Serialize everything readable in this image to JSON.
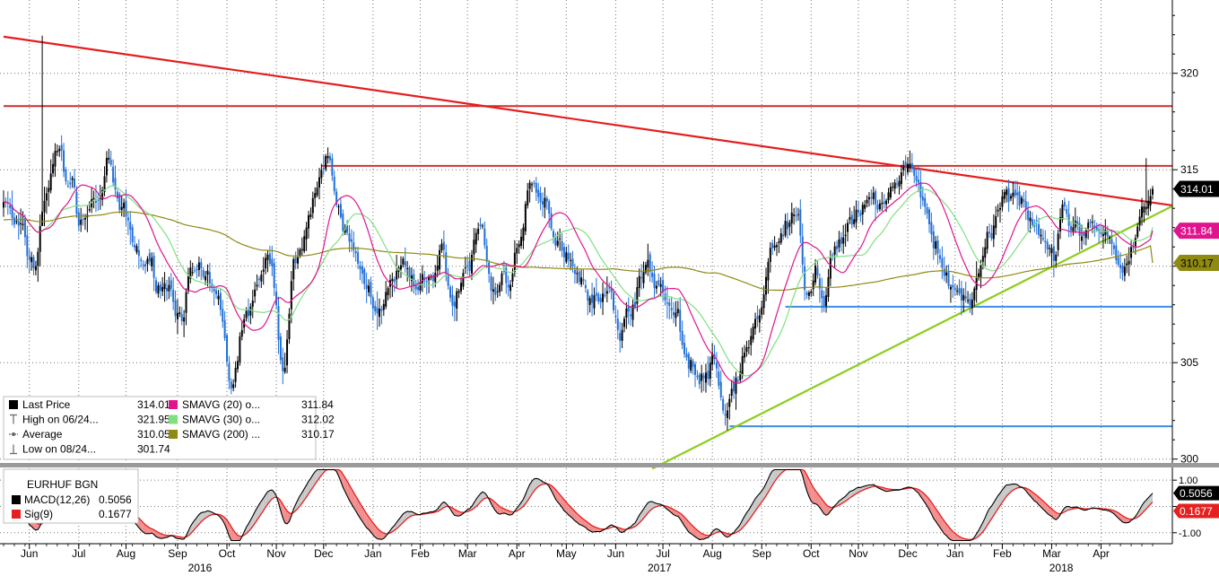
{
  "chart_data": {
    "type": "candlestick",
    "main_panel": {
      "y_ticks": [
        "320",
        "315",
        "305",
        "300"
      ],
      "ylim": [
        299.8,
        323.8
      ],
      "price_tags": [
        {
          "label": "314.01",
          "value": 314.01,
          "color": "#000000",
          "text_color": "#ffffff"
        },
        {
          "label": "311.84",
          "value": 311.84,
          "color": "#e0148c",
          "text_color": "#ffffff"
        },
        {
          "label": "310.17",
          "value": 310.17,
          "color": "#8f8a12",
          "text_color": "#000000"
        }
      ],
      "legend": [
        {
          "marker": "square",
          "color": "#000000",
          "label": "Last Price",
          "value": "314.01"
        },
        {
          "marker": "high",
          "color": "#666666",
          "label": "High on 06/24...",
          "value": "321.95"
        },
        {
          "marker": "avg",
          "color": "#666666",
          "label": "Average",
          "value": "310.05"
        },
        {
          "marker": "low",
          "color": "#666666",
          "label": "Low on 08/24...",
          "value": "301.74"
        },
        {
          "marker": "square",
          "color": "#e0148c",
          "label": "SMAVG (20) o...",
          "value": "311.84"
        },
        {
          "marker": "square",
          "color": "#7fe07f",
          "label": "SMAVG (30) o...",
          "value": "312.02"
        },
        {
          "marker": "square",
          "color": "#8f8a12",
          "label": "SMAVG (200) ...",
          "value": "310.17"
        }
      ],
      "series": {
        "ohlc_anchors": [
          [
            0,
            313.5
          ],
          [
            6,
            312
          ],
          [
            14,
            310
          ],
          [
            20,
            314
          ],
          [
            26,
            316
          ],
          [
            30,
            314.5
          ],
          [
            36,
            312.5
          ],
          [
            44,
            313.5
          ],
          [
            48,
            315
          ],
          [
            56,
            312.5
          ],
          [
            62,
            310.8
          ],
          [
            68,
            309.8
          ],
          [
            76,
            309
          ],
          [
            82,
            307.8
          ],
          [
            88,
            309.5
          ],
          [
            94,
            309
          ],
          [
            100,
            308
          ],
          [
            106,
            304
          ],
          [
            112,
            307
          ],
          [
            118,
            309
          ],
          [
            124,
            310
          ],
          [
            130,
            305.2
          ],
          [
            136,
            310
          ],
          [
            142,
            313
          ],
          [
            148,
            314.8
          ],
          [
            150,
            315.5
          ],
          [
            156,
            312.5
          ],
          [
            162,
            311
          ],
          [
            168,
            309.2
          ],
          [
            174,
            308.2
          ],
          [
            180,
            308.8
          ],
          [
            186,
            310
          ],
          [
            192,
            308.5
          ],
          [
            198,
            309.5
          ],
          [
            204,
            310.5
          ],
          [
            210,
            308.2
          ],
          [
            216,
            310
          ],
          [
            222,
            312
          ],
          [
            228,
            308.8
          ],
          [
            234,
            309.4
          ],
          [
            240,
            311.2
          ],
          [
            246,
            313.8
          ],
          [
            252,
            313
          ],
          [
            258,
            311.6
          ],
          [
            264,
            310.5
          ],
          [
            270,
            309.4
          ],
          [
            276,
            308.2
          ],
          [
            282,
            308.4
          ],
          [
            288,
            306.8
          ],
          [
            294,
            308.6
          ],
          [
            300,
            310
          ],
          [
            306,
            309
          ],
          [
            312,
            307.6
          ],
          [
            318,
            305.5
          ],
          [
            324,
            304
          ],
          [
            330,
            304.8
          ],
          [
            336,
            302.2
          ],
          [
            340,
            304
          ],
          [
            346,
            305.8
          ],
          [
            352,
            307.5
          ],
          [
            358,
            310.4
          ],
          [
            364,
            312.5
          ],
          [
            370,
            312.2
          ],
          [
            374,
            308
          ],
          [
            378,
            309.8
          ],
          [
            382,
            308.2
          ],
          [
            386,
            310.8
          ],
          [
            392,
            311.8
          ],
          [
            398,
            312.4
          ],
          [
            404,
            313.2
          ],
          [
            410,
            313.6
          ],
          [
            414,
            313.9
          ],
          [
            418,
            314.6
          ],
          [
            422,
            315
          ],
          [
            426,
            313.8
          ],
          [
            430,
            313
          ],
          [
            434,
            311
          ],
          [
            438,
            309.6
          ],
          [
            442,
            308.8
          ],
          [
            446,
            308.6
          ],
          [
            450,
            308.4
          ],
          [
            454,
            309.4
          ],
          [
            458,
            311
          ],
          [
            462,
            312.2
          ],
          [
            466,
            313.4
          ],
          [
            470,
            314
          ],
          [
            474,
            313.8
          ],
          [
            478,
            313
          ],
          [
            482,
            312
          ],
          [
            486,
            311.3
          ],
          [
            490,
            310.8
          ],
          [
            494,
            312.8
          ],
          [
            498,
            312.3
          ],
          [
            502,
            311.8
          ],
          [
            506,
            312.6
          ],
          [
            510,
            311.6
          ],
          [
            514,
            311
          ],
          [
            518,
            310.6
          ],
          [
            522,
            309.9
          ],
          [
            526,
            311.2
          ],
          [
            530,
            312.6
          ],
          [
            534,
            313.3
          ],
          [
            535,
            314.01
          ]
        ],
        "last_price": 314.01,
        "sma_periods": [
          20,
          30,
          200
        ]
      },
      "overlays": {
        "horizontal_lines": [
          {
            "value": 318.3,
            "from": 0,
            "to": 535,
            "color": "#d62a2a"
          },
          {
            "value": 315.2,
            "from": 148,
            "to": 535,
            "color": "#cc3333"
          },
          {
            "value": 307.9,
            "from": 364,
            "to": 535,
            "color": "#3d8fe0"
          },
          {
            "value": 301.7,
            "from": 338,
            "to": 535,
            "color": "#3d8fe0"
          }
        ],
        "trend_lines": [
          {
            "from": [
              0,
              321.9
            ],
            "to": [
              535,
              313.3
            ],
            "color": "#e41e1e"
          },
          {
            "from": [
              302,
              299.5
            ],
            "to": [
              535,
              312.6
            ],
            "color": "#8ccd1e"
          }
        ]
      }
    },
    "macd_panel": {
      "title": "EURHUF BGN",
      "y_ticks": [
        "1.00",
        "-1.00"
      ],
      "ylim": [
        -1.35,
        1.45
      ],
      "legend": [
        {
          "color": "#000000",
          "label": "MACD(12,26)",
          "value": "0.5056"
        },
        {
          "color": "#e62020",
          "label": "Sig(9)",
          "value": "0.1677"
        }
      ],
      "price_tags": [
        {
          "label": "0.5056",
          "value": 0.5056,
          "color": "#000000",
          "text_color": "#ffffff"
        },
        {
          "label": "0.1677",
          "value": 0.1677,
          "color": "#e62020",
          "text_color": "#ffffff"
        }
      ]
    },
    "x_axis": {
      "months": [
        {
          "label": "Jun",
          "index": 12
        },
        {
          "label": "Jul",
          "index": 35
        },
        {
          "label": "Aug",
          "index": 57
        },
        {
          "label": "Sep",
          "index": 81
        },
        {
          "label": "Oct",
          "index": 104
        },
        {
          "label": "Nov",
          "index": 127
        },
        {
          "label": "Dec",
          "index": 149
        },
        {
          "label": "Jan",
          "index": 172
        },
        {
          "label": "Feb",
          "index": 194
        },
        {
          "label": "Mar",
          "index": 216
        },
        {
          "label": "Apr",
          "index": 239
        },
        {
          "label": "May",
          "index": 262
        },
        {
          "label": "Jun",
          "index": 285
        },
        {
          "label": "Jul",
          "index": 307
        },
        {
          "label": "Aug",
          "index": 330
        },
        {
          "label": "Sep",
          "index": 353
        },
        {
          "label": "Oct",
          "index": 376
        },
        {
          "label": "Nov",
          "index": 398
        },
        {
          "label": "Dec",
          "index": 421
        },
        {
          "label": "Jan",
          "index": 443
        },
        {
          "label": "Feb",
          "index": 465
        },
        {
          "label": "Mar",
          "index": 488
        },
        {
          "label": "Apr",
          "index": 511
        }
      ],
      "years": [
        {
          "label": "2016",
          "index": 81
        },
        {
          "label": "2017",
          "index": 295
        },
        {
          "label": "2018",
          "index": 482
        }
      ],
      "n_bars": 536
    },
    "colors": {
      "up": "#000000",
      "down": "#1f6fd8",
      "grid": "#777777"
    }
  }
}
